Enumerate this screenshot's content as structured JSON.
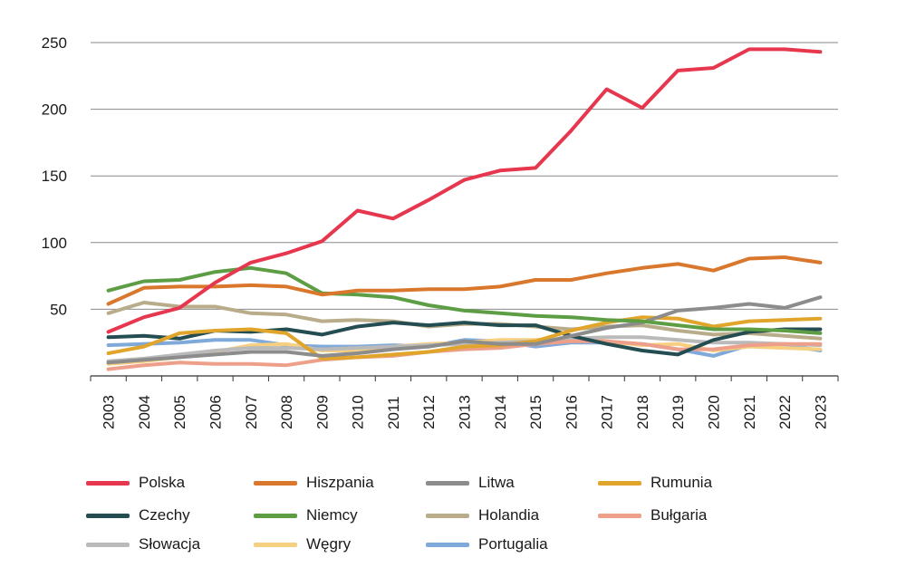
{
  "chart_data": {
    "type": "line",
    "title": "",
    "xlabel": "",
    "ylabel": "",
    "ylim": [
      0,
      250
    ],
    "yticks": [
      50,
      100,
      150,
      200,
      250
    ],
    "grid": true,
    "legend_position": "bottom",
    "x": [
      "2003",
      "2004",
      "2005",
      "2006",
      "2007",
      "2008",
      "2009",
      "2010",
      "2011",
      "2012",
      "2013",
      "2014",
      "2015",
      "2016",
      "2017",
      "2018",
      "2019",
      "2020",
      "2021",
      "2022",
      "2023"
    ],
    "series": [
      {
        "name": "Polska",
        "color": "#e6374e",
        "values": [
          33,
          44,
          51,
          70,
          85,
          92,
          101,
          124,
          118,
          132,
          147,
          154,
          156,
          184,
          215,
          201,
          229,
          231,
          245,
          245,
          243
        ]
      },
      {
        "name": "Hiszpania",
        "color": "#d9772c",
        "values": [
          54,
          66,
          67,
          67,
          68,
          67,
          61,
          64,
          64,
          65,
          65,
          67,
          72,
          72,
          77,
          81,
          84,
          79,
          88,
          89,
          85
        ]
      },
      {
        "name": "Litwa",
        "color": "#8c8c8c",
        "values": [
          10,
          12,
          14,
          16,
          18,
          18,
          15,
          17,
          20,
          22,
          26,
          24,
          24,
          30,
          36,
          40,
          49,
          51,
          54,
          51,
          59
        ]
      },
      {
        "name": "Rumunia",
        "color": "#e0a52a",
        "values": [
          17,
          22,
          32,
          34,
          35,
          32,
          13,
          14,
          16,
          18,
          22,
          23,
          26,
          34,
          40,
          44,
          43,
          37,
          41,
          42,
          43
        ]
      },
      {
        "name": "Czechy",
        "color": "#244d52",
        "values": [
          29,
          30,
          28,
          34,
          33,
          35,
          31,
          37,
          40,
          38,
          40,
          38,
          38,
          30,
          24,
          19,
          16,
          27,
          33,
          35,
          35
        ]
      },
      {
        "name": "Niemcy",
        "color": "#5d9e45",
        "values": [
          64,
          71,
          72,
          78,
          81,
          77,
          62,
          61,
          59,
          53,
          49,
          47,
          45,
          44,
          42,
          41,
          38,
          35,
          35,
          34,
          32
        ]
      },
      {
        "name": "Holandia",
        "color": "#b9ac8a",
        "values": [
          47,
          55,
          52,
          52,
          47,
          46,
          41,
          42,
          41,
          37,
          39,
          39,
          37,
          35,
          37,
          38,
          34,
          31,
          32,
          30,
          28
        ]
      },
      {
        "name": "Bułgaria",
        "color": "#ed9f8a",
        "values": [
          5,
          8,
          10,
          9,
          9,
          8,
          12,
          14,
          15,
          18,
          20,
          21,
          24,
          26,
          26,
          24,
          20,
          20,
          23,
          24,
          24
        ]
      },
      {
        "name": "Słowacja",
        "color": "#bababa",
        "values": [
          11,
          13,
          16,
          19,
          21,
          21,
          20,
          21,
          22,
          23,
          24,
          25,
          26,
          28,
          29,
          29,
          27,
          25,
          25,
          24,
          23
        ]
      },
      {
        "name": "Węgry",
        "color": "#f7cf80",
        "values": [
          9,
          11,
          14,
          18,
          23,
          24,
          19,
          19,
          22,
          24,
          25,
          27,
          27,
          28,
          26,
          23,
          24,
          19,
          22,
          21,
          20
        ]
      },
      {
        "name": "Portugalia",
        "color": "#7fa9d9",
        "values": [
          23,
          24,
          25,
          27,
          27,
          23,
          22,
          22,
          23,
          22,
          27,
          26,
          22,
          25,
          25,
          24,
          20,
          15,
          23,
          23,
          19
        ]
      }
    ]
  }
}
